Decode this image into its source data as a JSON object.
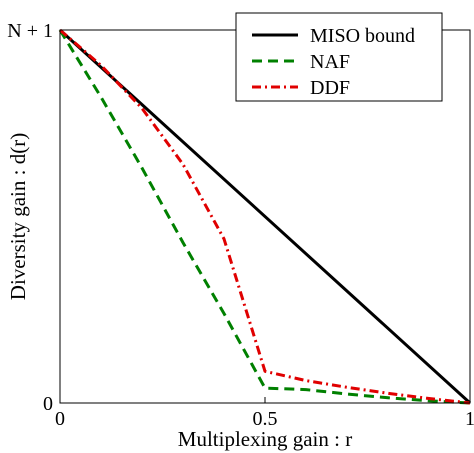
{
  "chart_data": {
    "type": "line",
    "xlabel": "Multiplexing gain : r",
    "ylabel": "Diversity gain : d(r)",
    "xlim": [
      0,
      1
    ],
    "ylim": [
      0,
      1
    ],
    "x_ticks": [
      {
        "value": 0,
        "label": "0"
      },
      {
        "value": 0.5,
        "label": "0.5"
      },
      {
        "value": 1,
        "label": "1"
      }
    ],
    "y_ticks": [
      {
        "value": 0,
        "label": "0"
      },
      {
        "value": 1,
        "label": "N + 1"
      }
    ],
    "legend_position": "top-right",
    "grid": false,
    "series": [
      {
        "name": "MISO bound",
        "color": "#000000",
        "dash": "solid",
        "points": [
          [
            0,
            1
          ],
          [
            1,
            0
          ]
        ]
      },
      {
        "name": "NAF",
        "color": "#008000",
        "dash": "dashed",
        "points": [
          [
            0,
            1
          ],
          [
            0.1,
            0.82
          ],
          [
            0.2,
            0.63
          ],
          [
            0.3,
            0.43
          ],
          [
            0.4,
            0.24
          ],
          [
            0.5,
            0.04
          ],
          [
            0.6,
            0.036
          ],
          [
            0.7,
            0.024
          ],
          [
            0.8,
            0.014
          ],
          [
            0.9,
            0.006
          ],
          [
            1,
            0
          ]
        ]
      },
      {
        "name": "DDF",
        "color": "#e00000",
        "dash": "dashdot",
        "points": [
          [
            0,
            1
          ],
          [
            0.1,
            0.905
          ],
          [
            0.2,
            0.79
          ],
          [
            0.3,
            0.64
          ],
          [
            0.4,
            0.44
          ],
          [
            0.5,
            0.085
          ],
          [
            0.6,
            0.06
          ],
          [
            0.7,
            0.042
          ],
          [
            0.8,
            0.026
          ],
          [
            0.9,
            0.012
          ],
          [
            1,
            0
          ]
        ]
      }
    ]
  }
}
